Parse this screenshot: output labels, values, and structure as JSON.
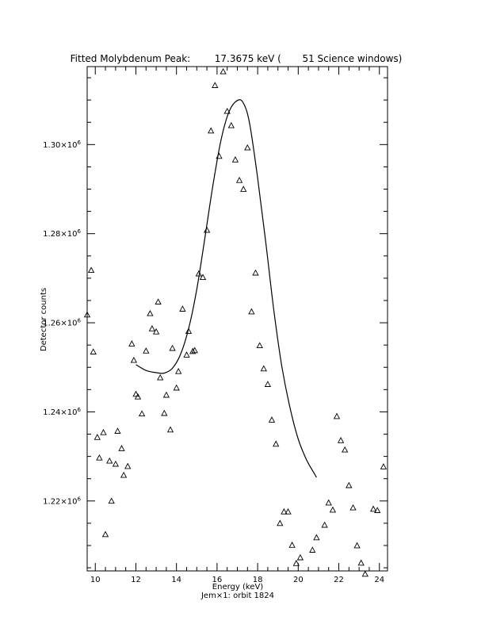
{
  "chart_data": {
    "type": "scatter",
    "title": "Fitted Molybdenum Peak:        17.3675 keV (       51 Science windows)",
    "xlabel": "Energy (keV)",
    "ylabel": "Detector counts",
    "footer": "Jem×1: orbit 1824",
    "xlim": [
      9.6,
      24.4
    ],
    "ylim": [
      1204300,
      1317500
    ],
    "x_ticks": [
      10,
      12,
      14,
      16,
      18,
      20,
      22,
      24
    ],
    "y_ticks": [
      {
        "value": 1220000,
        "mantissa": "1.22×10",
        "exp": "6"
      },
      {
        "value": 1240000,
        "mantissa": "1.24×10",
        "exp": "6"
      },
      {
        "value": 1260000,
        "mantissa": "1.26×10",
        "exp": "6"
      },
      {
        "value": 1280000,
        "mantissa": "1.28×10",
        "exp": "6"
      },
      {
        "value": 1300000,
        "mantissa": "1.30×10",
        "exp": "6"
      }
    ],
    "series": [
      {
        "marker": "triangle",
        "x": [
          9.6,
          9.8,
          9.9,
          10.1,
          10.2,
          10.4,
          10.5,
          10.7,
          10.8,
          11.0,
          11.1,
          11.3,
          11.4,
          11.6,
          11.8,
          11.9,
          12.0,
          12.1,
          12.3,
          12.5,
          12.7,
          12.8,
          13.0,
          13.1,
          13.2,
          13.4,
          13.5,
          13.7,
          13.8,
          14.0,
          14.1,
          14.3,
          14.5,
          14.6,
          14.8,
          14.9,
          15.1,
          15.3,
          15.5,
          15.7,
          15.9,
          16.1,
          16.3,
          16.5,
          16.7,
          16.9,
          17.1,
          17.3,
          17.5,
          17.7,
          17.9,
          18.1,
          18.3,
          18.5,
          18.7,
          18.9,
          19.1,
          19.3,
          19.5,
          19.7,
          19.9,
          20.1,
          20.7,
          20.9,
          21.3,
          21.5,
          21.7,
          21.9,
          22.1,
          22.3,
          22.5,
          22.7,
          22.9,
          23.1,
          23.3,
          23.7,
          23.9,
          24.2
        ],
        "y": [
          1261800,
          1271800,
          1253500,
          1234300,
          1229700,
          1235400,
          1212500,
          1229000,
          1220000,
          1228300,
          1235700,
          1231800,
          1225800,
          1227800,
          1255300,
          1251600,
          1244000,
          1243400,
          1239600,
          1253700,
          1262100,
          1258700,
          1258000,
          1264700,
          1247700,
          1239700,
          1243800,
          1236000,
          1254300,
          1245400,
          1249100,
          1263100,
          1252800,
          1258100,
          1253600,
          1253800,
          1271000,
          1270200,
          1280800,
          1303100,
          1313300,
          1297400,
          1316400,
          1307500,
          1304300,
          1296600,
          1292000,
          1290000,
          1299300,
          1262500,
          1271200,
          1254900,
          1249700,
          1246200,
          1238200,
          1232800,
          1215000,
          1217600,
          1217600,
          1210100,
          1206000,
          1207300,
          1209000,
          1211800,
          1214600,
          1219600,
          1218000,
          1239000,
          1233600,
          1231500,
          1223500,
          1218500,
          1210000,
          1206100,
          1203600,
          1218200,
          1217900,
          1227700
        ]
      },
      {
        "type": "line",
        "x": [
          12.0,
          12.5,
          13.0,
          13.4,
          13.8,
          14.2,
          14.6,
          15.0,
          15.4,
          15.8,
          16.2,
          16.6,
          17.0,
          17.3,
          17.6,
          18.0,
          18.4,
          18.8,
          19.2,
          19.6,
          20.0,
          20.4,
          20.8,
          20.9
        ],
        "y": [
          1250600,
          1249300,
          1248800,
          1248700,
          1249800,
          1252900,
          1258700,
          1267500,
          1279000,
          1291000,
          1301100,
          1307500,
          1309900,
          1309300,
          1304800,
          1292500,
          1278000,
          1262700,
          1250000,
          1240800,
          1233900,
          1229300,
          1226100,
          1225300
        ]
      }
    ]
  }
}
